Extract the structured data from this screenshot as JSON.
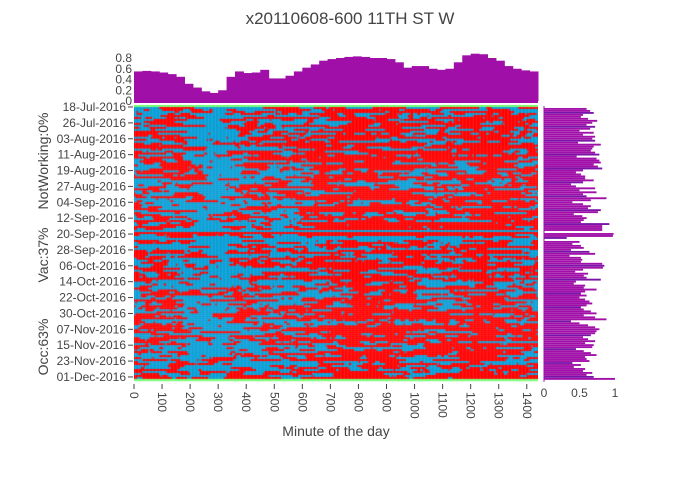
{
  "chart_data": {
    "type": "heatmap",
    "title": "x20110608-600 11TH ST W",
    "xlabel": "Minute of the day",
    "ylabel_lines": [
      "Occ:63%",
      "Vac:37%",
      "NotWorking:0%"
    ],
    "x_range": [
      0,
      1440
    ],
    "x_ticks": [
      "0",
      "100",
      "200",
      "300",
      "400",
      "500",
      "600",
      "700",
      "800",
      "900",
      "1000",
      "1100",
      "1200",
      "1300",
      "1400"
    ],
    "y_ticks": [
      "18-Jul-2016",
      "26-Jul-2016",
      "03-Aug-2016",
      "11-Aug-2016",
      "19-Aug-2016",
      "27-Aug-2016",
      "04-Sep-2016",
      "12-Sep-2016",
      "20-Sep-2016",
      "28-Sep-2016",
      "06-Oct-2016",
      "14-Oct-2016",
      "22-Oct-2016",
      "30-Oct-2016",
      "07-Nov-2016",
      "15-Nov-2016",
      "23-Nov-2016",
      "01-Dec-2016"
    ],
    "num_days": 139,
    "categories": [
      {
        "name": "Occupied",
        "color": "#ff0000"
      },
      {
        "name": "Vacant",
        "color": "#0a9fd6"
      },
      {
        "name": "NotWorking",
        "color": "#7dff7d"
      }
    ],
    "top_profile": {
      "type": "bar",
      "y_ticks": [
        "0",
        "0.2",
        "0.4",
        "0.6",
        "0.8"
      ],
      "ylim": [
        0,
        1
      ],
      "bin_minutes": 30,
      "values": [
        0.55,
        0.56,
        0.55,
        0.53,
        0.5,
        0.45,
        0.32,
        0.25,
        0.18,
        0.15,
        0.2,
        0.45,
        0.55,
        0.52,
        0.53,
        0.58,
        0.42,
        0.42,
        0.47,
        0.55,
        0.62,
        0.68,
        0.75,
        0.78,
        0.8,
        0.82,
        0.83,
        0.82,
        0.8,
        0.8,
        0.78,
        0.72,
        0.62,
        0.65,
        0.65,
        0.6,
        0.58,
        0.6,
        0.72,
        0.85,
        0.88,
        0.87,
        0.8,
        0.75,
        0.65,
        0.6,
        0.57,
        0.55
      ],
      "color": "#a010a8"
    },
    "side_profile": {
      "type": "bar",
      "x_ticks": [
        "0",
        "0.5",
        "1"
      ],
      "xlim": [
        0,
        1
      ],
      "color": "#a010a8",
      "values": [
        0,
        0.6,
        0.65,
        0.7,
        0.55,
        0.52,
        0.62,
        0.75,
        0.68,
        0.6,
        0.72,
        0.65,
        0.5,
        0.7,
        0.55,
        0.72,
        0.68,
        0.72,
        0.48,
        0.8,
        0.7,
        0.68,
        0.66,
        0.72,
        0.78,
        0.46,
        0.74,
        0.78,
        0.8,
        0.7,
        0.76,
        0.82,
        0.55,
        0.45,
        0.52,
        0.58,
        0.58,
        0.7,
        0.55,
        0.38,
        0.45,
        0.72,
        0.5,
        0.74,
        0.55,
        0.6,
        0.88,
        0.66,
        0.4,
        0.55,
        0.66,
        0.62,
        0.8,
        0.76,
        0.42,
        0.54,
        0.6,
        0.56,
        0.52,
        0.92,
        0.82,
        0.82,
        0.82,
        0.0,
        0.98,
        0.97,
        0.32,
        0.0,
        0.5,
        0.4,
        0.52,
        0.56,
        0.38,
        0.64,
        0.72,
        0.36,
        0.52,
        0.54,
        0.52,
        0.82,
        0.85,
        0.83,
        0.55,
        0.44,
        0.62,
        0.56,
        0.6,
        0.8,
        0.45,
        0.42,
        0.58,
        0.56,
        0.74,
        0.58,
        0.52,
        0.6,
        0.5,
        0.58,
        0.64,
        0.68,
        0.6,
        0.52,
        0.56,
        0.66,
        0.74,
        0.56,
        0.72,
        0.88,
        0.38,
        0.5,
        0.62,
        0.72,
        0.78,
        0.74,
        0.72,
        0.66,
        0.55,
        0.62,
        0.72,
        0.58,
        0.7,
        0.68,
        0.45,
        0.56,
        0.66,
        0.74,
        0.58,
        0.6,
        0.64,
        0.4,
        0.52,
        0.42,
        0.58,
        0.55,
        0.68,
        0.6,
        0.7,
        1.0,
        0
      ]
    }
  }
}
